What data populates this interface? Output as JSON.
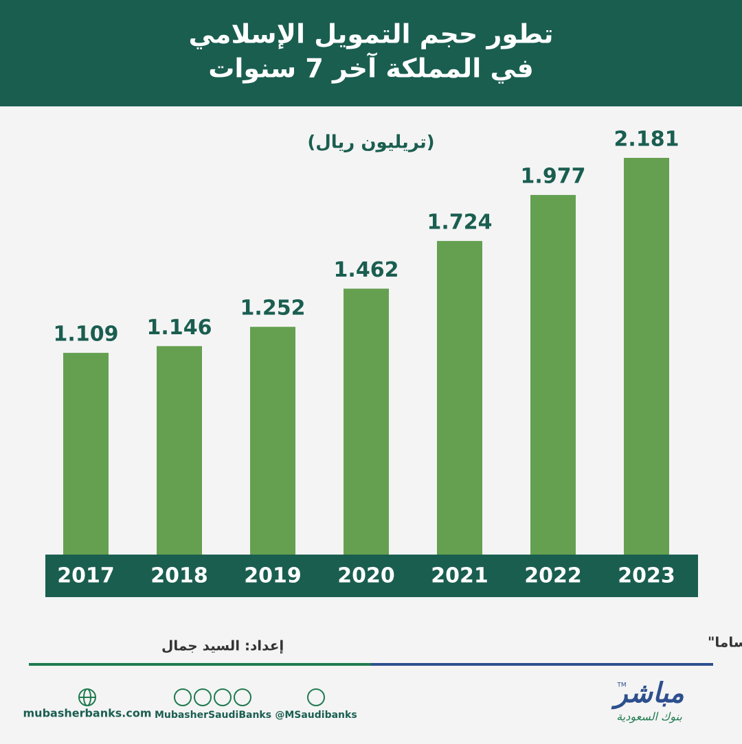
{
  "header": {
    "title_lines": [
      "تطور حجم التمويل الإسلامي",
      "في المملكة آخر 7 سنوات"
    ]
  },
  "chart_data": {
    "type": "bar",
    "unit": "(تريليون ريال)",
    "categories": [
      "2017",
      "2018",
      "2019",
      "2020",
      "2021",
      "2022",
      "2023"
    ],
    "values": [
      1.109,
      1.146,
      1.252,
      1.462,
      1.724,
      1.977,
      2.181
    ],
    "color": "#64a050",
    "label_color": "#1a5e50"
  },
  "footer": {
    "source": "المصدر: البنك المركزي السعودي \"ساما\"",
    "prepared_by": "إعداد: السيد جمال",
    "website": "mubasherbanks.com",
    "social_handle": "MubasherSaudiBanks",
    "twitter_handle": "@MSaudibanks",
    "logo": {
      "name": "مباشر",
      "tagline": "بنوك السعودية",
      "trademark": "TM"
    }
  }
}
